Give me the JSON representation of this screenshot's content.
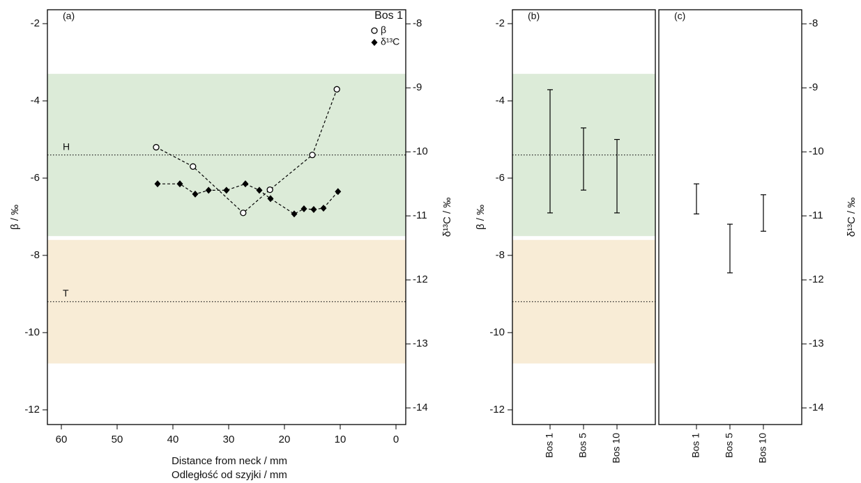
{
  "chart_data": [
    {
      "type": "line",
      "panel_label": "(a)",
      "title": "Bos 1",
      "xlabel": [
        "Distance from neck / mm",
        "Odległość od szyjki / mm"
      ],
      "ylabel": "β / ‰",
      "y2label": "δ¹³C / ‰",
      "xlim": [
        62.5,
        -1.75
      ],
      "xticks": [
        60,
        50,
        40,
        30,
        20,
        10,
        0
      ],
      "ylim": [
        -12.38,
        -1.64
      ],
      "yticks": [
        -12,
        -10,
        -8,
        -6,
        -4,
        -2
      ],
      "y2lim": [
        -14.26,
        -7.78
      ],
      "y2ticks": [
        -14,
        -13,
        -12,
        -11,
        -10,
        -9,
        -8
      ],
      "yaxis_side": "left",
      "bands": [
        {
          "range": [
            -7.5,
            -3.3
          ],
          "color": "#dcebd8"
        },
        {
          "range": [
            -10.8,
            -7.6
          ],
          "color": "#f8ecd6"
        }
      ],
      "reference_lines": [
        {
          "value": -5.4,
          "label": "H"
        },
        {
          "value": -9.2,
          "label": "T"
        }
      ],
      "series": [
        {
          "name": "β",
          "marker": "circle",
          "color": "#000000",
          "axis": "y",
          "x": [
            43,
            36.4,
            27.4,
            22.6,
            15,
            10.6
          ],
          "values": [
            -5.2,
            -5.7,
            -6.9,
            -6.3,
            -5.4,
            -3.7
          ]
        },
        {
          "name": "δ¹³C",
          "marker": "diamond",
          "color": "#000000",
          "axis": "y2",
          "x": [
            42.75,
            38.75,
            36,
            33.6,
            30.4,
            27,
            24.5,
            22.5,
            18.25,
            16.5,
            14.75,
            13,
            10.4
          ],
          "values": [
            -10.5,
            -10.5,
            -10.66,
            -10.6,
            -10.6,
            -10.5,
            -10.6,
            -10.73,
            -10.97,
            -10.89,
            -10.9,
            -10.88,
            -10.62
          ]
        }
      ]
    },
    {
      "type": "range",
      "panel_label": "(b)",
      "ylabel": "β / ‰",
      "ylim": [
        -12.38,
        -1.64
      ],
      "yticks": [
        -12,
        -10,
        -8,
        -6,
        -4,
        -2
      ],
      "yaxis_side": "left",
      "bands": [
        {
          "range": [
            -7.5,
            -3.3
          ],
          "color": "#dcebd8"
        },
        {
          "range": [
            -10.8,
            -7.6
          ],
          "color": "#f8ecd6"
        }
      ],
      "reference_lines": [
        {
          "value": -5.4
        },
        {
          "value": -9.2
        }
      ],
      "categories": [
        "Bos 1",
        "Bos 5",
        "Bos 10"
      ],
      "low": [
        -6.9,
        -6.31,
        -6.9
      ],
      "high": [
        -3.71,
        -4.7,
        -5.0
      ]
    },
    {
      "type": "range",
      "panel_label": "(c)",
      "ylabel": "δ¹³C / ‰",
      "ylim": [
        -14.26,
        -7.78
      ],
      "yticks": [
        -14,
        -13,
        -12,
        -11,
        -10,
        -9,
        -8
      ],
      "yaxis_side": "right",
      "categories": [
        "Bos 1",
        "Bos 5",
        "Bos 10"
      ],
      "low": [
        -10.97,
        -11.89,
        -11.24
      ],
      "high": [
        -10.5,
        -11.13,
        -10.67
      ]
    }
  ]
}
